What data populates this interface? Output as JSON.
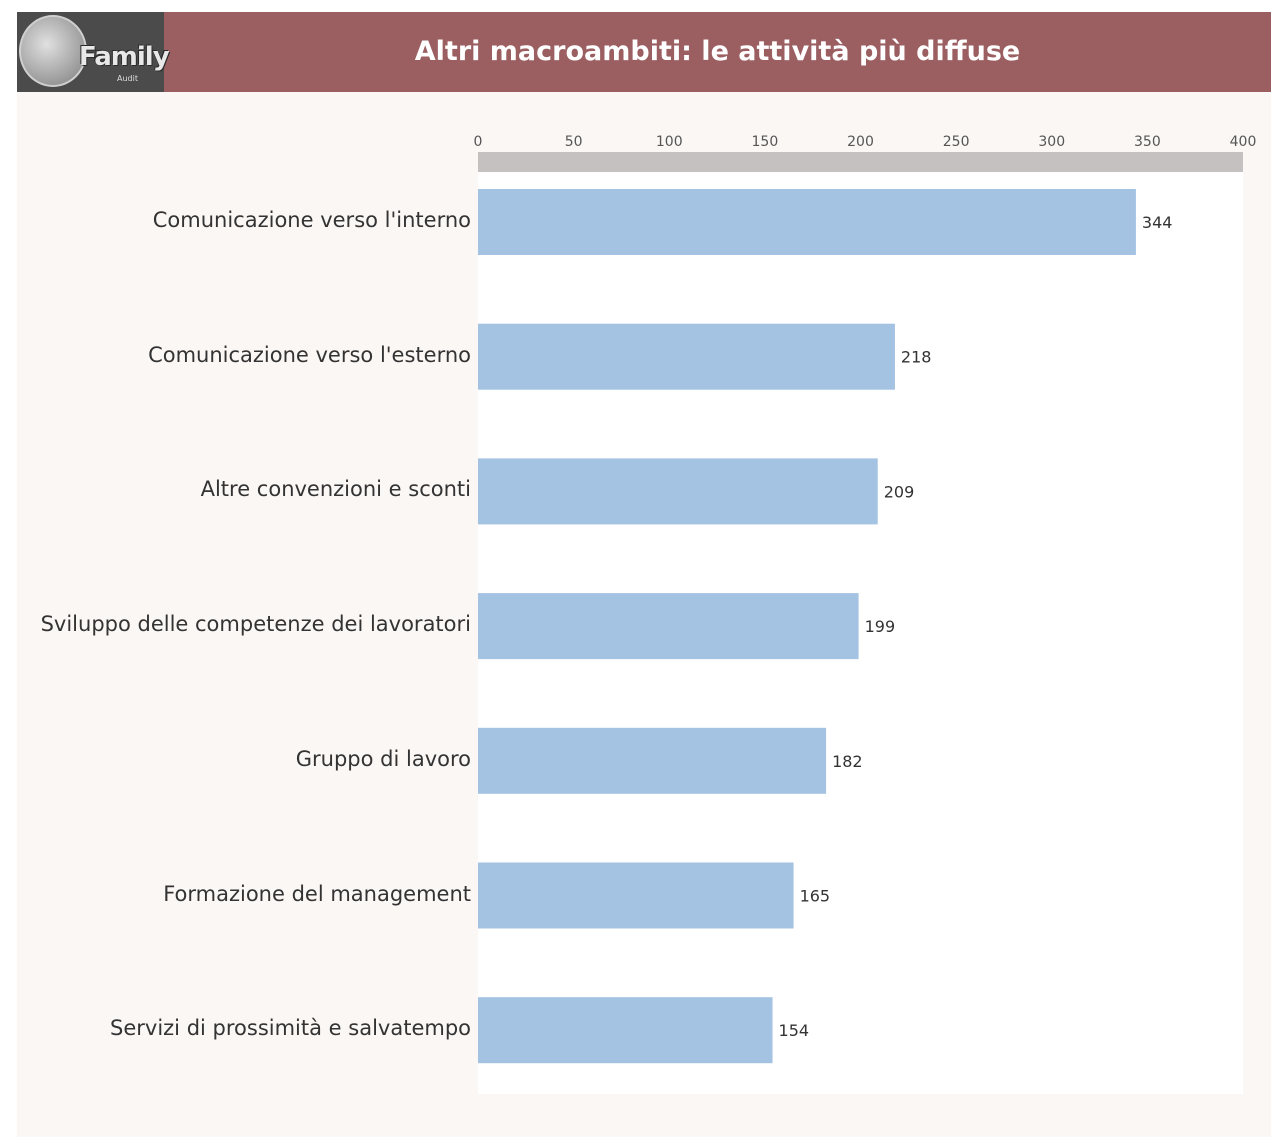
{
  "header": {
    "title": "Altri macroambiti: le attività più diffuse",
    "logo_text": "Family",
    "logo_subtext": "Audit"
  },
  "colors": {
    "header_bg": "#9b5e61",
    "bar": "#a4c2e2",
    "axis_band": "#c4c1c0"
  },
  "chart_data": {
    "type": "bar",
    "orientation": "horizontal",
    "categories": [
      "Comunicazione verso l'interno",
      "Comunicazione verso l'esterno",
      "Altre convenzioni e sconti",
      "Sviluppo delle competenze dei lavoratori",
      "Gruppo di lavoro",
      "Formazione del management",
      "Servizi di prossimità e salvatempo"
    ],
    "values": [
      344,
      218,
      209,
      199,
      182,
      165,
      154
    ],
    "xlim": [
      0,
      400
    ],
    "xticks": [
      0,
      50,
      100,
      150,
      200,
      250,
      300,
      350,
      400
    ],
    "x_axis_position": "top",
    "grid": false,
    "data_labels": true
  }
}
